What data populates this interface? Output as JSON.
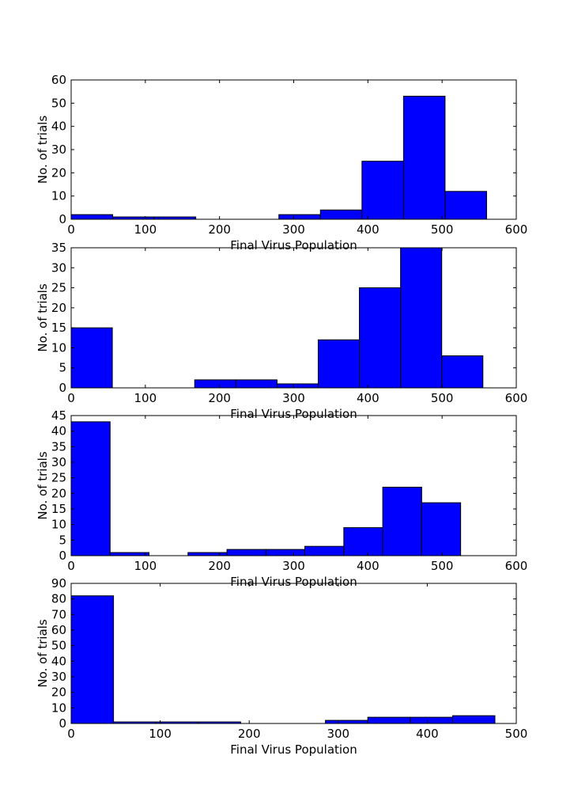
{
  "chart_data": [
    {
      "type": "bar",
      "histogram": true,
      "xlabel": "Final Virus Population",
      "ylabel": "No. of trials",
      "xlim": [
        0,
        600
      ],
      "ylim": [
        0,
        60
      ],
      "xticks": [
        "0",
        "100",
        "200",
        "300",
        "400",
        "500",
        "600"
      ],
      "yticks": [
        "0",
        "10",
        "20",
        "30",
        "40",
        "50",
        "60"
      ],
      "bin_edges": [
        0,
        56,
        112,
        168,
        224,
        280,
        336,
        392,
        448,
        504,
        560
      ],
      "values": [
        2,
        1,
        1,
        0,
        0,
        2,
        4,
        25,
        53,
        12
      ]
    },
    {
      "type": "bar",
      "histogram": true,
      "xlabel": "Final Virus Population",
      "ylabel": "No. of trials",
      "xlim": [
        0,
        600
      ],
      "ylim": [
        0,
        35
      ],
      "xticks": [
        "0",
        "100",
        "200",
        "300",
        "400",
        "500",
        "600"
      ],
      "yticks": [
        "0",
        "5",
        "10",
        "15",
        "20",
        "25",
        "30",
        "35"
      ],
      "bin_edges": [
        0,
        55.5,
        111,
        166.5,
        222,
        277.5,
        333,
        388.5,
        444,
        499.5,
        555
      ],
      "values": [
        15,
        0,
        0,
        2,
        2,
        1,
        12,
        25,
        35,
        8
      ]
    },
    {
      "type": "bar",
      "histogram": true,
      "xlabel": "Final Virus Population",
      "ylabel": "No. of trials",
      "xlim": [
        0,
        600
      ],
      "ylim": [
        0,
        45
      ],
      "xticks": [
        "0",
        "100",
        "200",
        "300",
        "400",
        "500",
        "600"
      ],
      "yticks": [
        "0",
        "5",
        "10",
        "15",
        "20",
        "25",
        "30",
        "35",
        "40",
        "45"
      ],
      "bin_edges": [
        0,
        52.5,
        105,
        157.5,
        210,
        262.5,
        315,
        367.5,
        420,
        472.5,
        525
      ],
      "values": [
        43,
        1,
        0,
        1,
        2,
        2,
        3,
        9,
        22,
        17
      ]
    },
    {
      "type": "bar",
      "histogram": true,
      "xlabel": "Final Virus Population",
      "ylabel": "No. of trials",
      "xlim": [
        0,
        500
      ],
      "ylim": [
        0,
        90
      ],
      "xticks": [
        "0",
        "100",
        "200",
        "300",
        "400",
        "500"
      ],
      "yticks": [
        "0",
        "10",
        "20",
        "30",
        "40",
        "50",
        "60",
        "70",
        "80",
        "90"
      ],
      "bin_edges": [
        0,
        47.6,
        95.2,
        142.8,
        190.4,
        238,
        285.6,
        333.2,
        380.8,
        428.4,
        476
      ],
      "values": [
        82,
        1,
        1,
        1,
        0,
        0,
        2,
        4,
        4,
        5
      ]
    }
  ],
  "colors": {
    "bar_fill": "#0000ff",
    "bar_edge": "#000000",
    "axes": "#000000",
    "background": "#ffffff"
  }
}
